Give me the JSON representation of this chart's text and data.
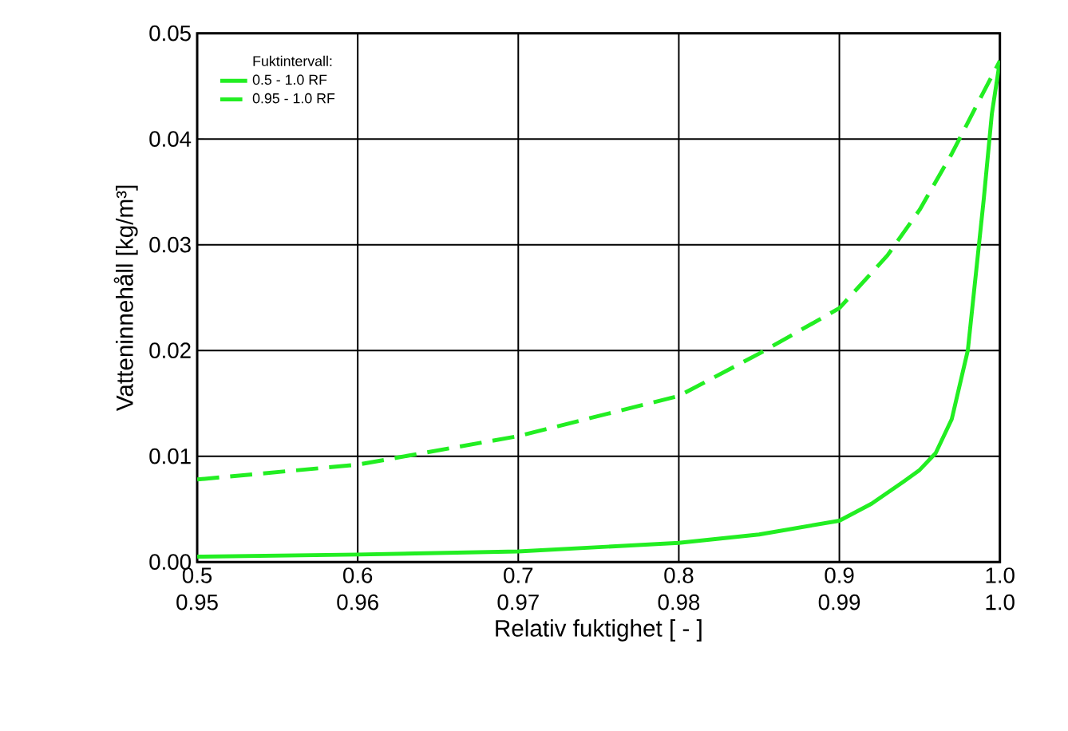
{
  "chart_data": {
    "type": "line",
    "xlabel": "Relativ fuktighet [ - ]",
    "ylabel": "Vatteninnehåll [kg/m³]",
    "legend_title": "Fuktintervall:",
    "xlim": [
      0.5,
      1.0
    ],
    "xticks": [
      0.5,
      0.6,
      0.7,
      0.8,
      0.9,
      {
        "value": 1.0,
        "label": "1.0"
      }
    ],
    "x2lim": [
      0.95,
      1.0
    ],
    "x2ticks": [
      0.95,
      0.96,
      0.97,
      0.98,
      0.99,
      {
        "value": 1.0,
        "label": "1.0"
      }
    ],
    "ylim": [
      0,
      0.05
    ],
    "yticks": [
      {
        "value": 0,
        "label": "0.00"
      },
      {
        "value": 0.01,
        "label": "0.01"
      },
      {
        "value": 0.02,
        "label": "0.02"
      },
      {
        "value": 0.03,
        "label": "0.03"
      },
      {
        "value": 0.04,
        "label": "0.04"
      },
      {
        "value": 0.05,
        "label": "0.05"
      }
    ],
    "grid": true,
    "legend": "top left",
    "marker": "none",
    "series": [
      {
        "name": "0.5  - 1.0 RF",
        "color": "#22ee22",
        "line_style": "solid",
        "x": [
          0.5,
          0.6,
          0.7,
          0.8,
          0.85,
          0.9,
          0.92,
          0.94,
          0.95,
          0.96,
          0.97,
          0.98,
          0.99,
          0.995,
          1.0
        ],
        "values": [
          0.0005,
          0.0007,
          0.001,
          0.0018,
          0.0026,
          0.0039,
          0.0055,
          0.0076,
          0.0087,
          0.0103,
          0.0135,
          0.02,
          0.0344,
          0.0424,
          0.0474
        ]
      },
      {
        "name": "0.95 - 1.0 RF",
        "color": "#22ee22",
        "line_style": "dashed",
        "axis": "x2",
        "x": [
          0.95,
          0.96,
          0.97,
          0.98,
          0.985,
          0.99,
          0.993,
          0.995,
          0.997,
          0.999,
          1.0
        ],
        "values": [
          0.0078,
          0.0092,
          0.0119,
          0.0157,
          0.0197,
          0.024,
          0.029,
          0.0333,
          0.0386,
          0.0445,
          0.0474
        ]
      }
    ]
  }
}
